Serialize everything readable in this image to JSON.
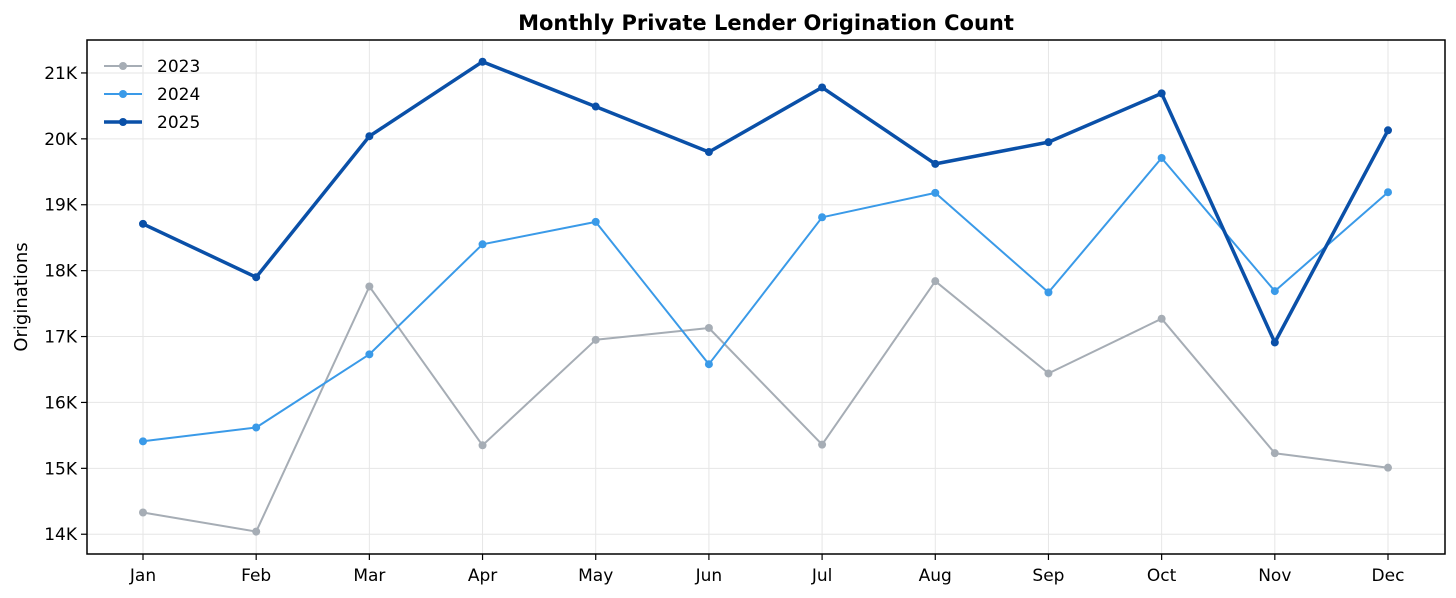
{
  "chart_data": {
    "type": "line",
    "title": "Monthly Private Lender Origination Count",
    "xlabel": "",
    "ylabel": "Originations",
    "categories": [
      "Jan",
      "Feb",
      "Mar",
      "Apr",
      "May",
      "Jun",
      "Jul",
      "Aug",
      "Sep",
      "Oct",
      "Nov",
      "Dec"
    ],
    "ylim": [
      13700,
      21500
    ],
    "yticks": [
      14000,
      15000,
      16000,
      17000,
      18000,
      19000,
      20000,
      21000
    ],
    "ytick_labels": [
      "14K",
      "15K",
      "16K",
      "17K",
      "18K",
      "19K",
      "20K",
      "21K"
    ],
    "grid": true,
    "legend_position": "top-left",
    "series": [
      {
        "name": "2023",
        "color": "#a6adb5",
        "values": [
          14330,
          14040,
          17760,
          15350,
          16950,
          17130,
          15360,
          17840,
          16440,
          17270,
          15230,
          15010
        ]
      },
      {
        "name": "2024",
        "color": "#3a9ae8",
        "values": [
          15410,
          15620,
          16730,
          18400,
          18740,
          16580,
          18810,
          19180,
          17670,
          19710,
          17690,
          19190
        ]
      },
      {
        "name": "2025",
        "color": "#0a50a8",
        "values": [
          18710,
          17900,
          20040,
          21170,
          20490,
          19800,
          20780,
          19620,
          19950,
          20690,
          16910,
          20130
        ]
      }
    ]
  }
}
